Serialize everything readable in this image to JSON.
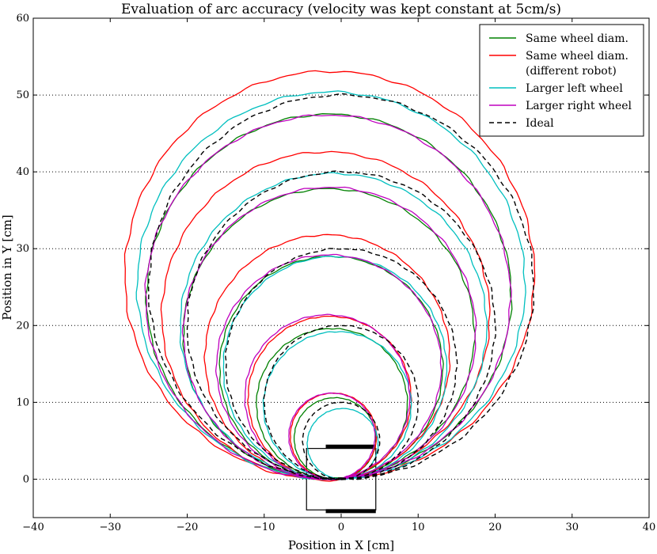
{
  "chart_data": {
    "type": "line",
    "title": "Evaluation of arc accuracy (velocity was kept constant at 5cm/s)",
    "xlabel": "Position in X [cm]",
    "ylabel": "Position in Y [cm]",
    "xlim": [
      -40,
      40
    ],
    "ylim": [
      -5,
      60
    ],
    "xticks": [
      -40,
      -30,
      -20,
      -10,
      0,
      10,
      20,
      30,
      40
    ],
    "yticks": [
      0,
      10,
      20,
      30,
      40,
      50,
      60
    ],
    "grid": "horizontal-dotted",
    "legend_position": "top-right",
    "ideal_radii_cm": [
      5,
      10,
      15,
      20,
      25
    ],
    "series": [
      {
        "name": "Same wheel diam.",
        "color": "#008000",
        "style": "solid",
        "circles": [
          {
            "cx": -0.8,
            "cy": 5.3,
            "r": 5.3
          },
          {
            "cx": -1.2,
            "cy": 9.8,
            "r": 9.8
          },
          {
            "cx": -1.3,
            "cy": 14.5,
            "r": 14.5
          },
          {
            "cx": -1.6,
            "cy": 18.9,
            "r": 18.9
          },
          {
            "cx": -1.6,
            "cy": 23.8,
            "r": 23.7
          }
        ]
      },
      {
        "name": "Same wheel diam.\n(different robot)",
        "legend_lines": [
          "Same wheel diam.",
          "(different robot)"
        ],
        "color": "#ff0000",
        "style": "solid",
        "circles": [
          {
            "cx": -1.0,
            "cy": 5.6,
            "r": 5.6
          },
          {
            "cx": -1.5,
            "cy": 10.6,
            "r": 10.6
          },
          {
            "cx": -1.8,
            "cy": 15.9,
            "r": 15.9
          },
          {
            "cx": -2.0,
            "cy": 21.3,
            "r": 21.3
          },
          {
            "cx": -1.5,
            "cy": 26.5,
            "r": 26.6
          }
        ]
      },
      {
        "name": "Larger left wheel",
        "color": "#00bfbf",
        "style": "solid",
        "circles": [
          {
            "cx": 0.2,
            "cy": 4.6,
            "r": 4.6
          },
          {
            "cx": -0.5,
            "cy": 9.6,
            "r": 9.6
          },
          {
            "cx": -0.8,
            "cy": 14.5,
            "r": 14.5
          },
          {
            "cx": -1.0,
            "cy": 19.9,
            "r": 19.9
          },
          {
            "cx": -1.3,
            "cy": 25.2,
            "r": 25.2
          }
        ]
      },
      {
        "name": "Larger right wheel",
        "color": "#bf00bf",
        "style": "solid",
        "circles": [
          {
            "cx": -1.2,
            "cy": 5.6,
            "r": 5.6
          },
          {
            "cx": -1.8,
            "cy": 10.7,
            "r": 10.7
          },
          {
            "cx": -1.6,
            "cy": 14.6,
            "r": 14.6
          },
          {
            "cx": -1.5,
            "cy": 19.0,
            "r": 19.0
          },
          {
            "cx": -1.7,
            "cy": 23.7,
            "r": 23.7
          }
        ]
      },
      {
        "name": "Ideal",
        "color": "#000000",
        "style": "dashed",
        "circles": [
          {
            "cx": 0,
            "cy": 5,
            "r": 5
          },
          {
            "cx": 0,
            "cy": 10,
            "r": 10
          },
          {
            "cx": 0,
            "cy": 15,
            "r": 15
          },
          {
            "cx": 0,
            "cy": 20,
            "r": 20
          },
          {
            "cx": 0,
            "cy": 25,
            "r": 25
          }
        ]
      }
    ]
  }
}
